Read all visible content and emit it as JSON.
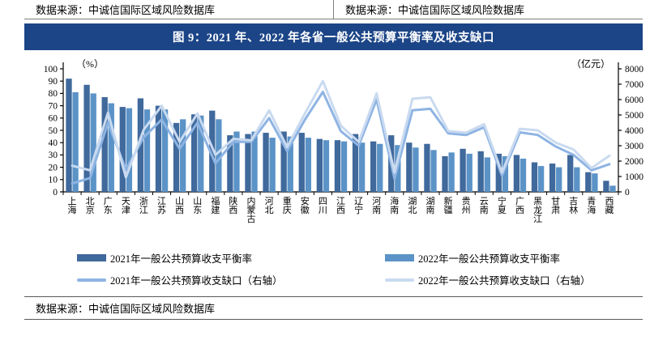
{
  "header": {
    "left_source": "数据来源：中诚信国际区域风险数据库",
    "right_source": "数据来源：中诚信国际区域风险数据库"
  },
  "figure": {
    "title": "图 9：2021 年、2022 年各省一般公共预算平衡率及收支缺口",
    "banner_color": "#1C4587"
  },
  "chart_data": {
    "type": "bar+line",
    "left_axis": {
      "label": "（%）",
      "min": 0,
      "max": 100,
      "step": 10
    },
    "right_axis": {
      "label": "（亿元）",
      "min": 0,
      "max": 8000,
      "step": 1000
    },
    "categories": [
      "上海",
      "北京",
      "广东",
      "天津",
      "浙江",
      "江苏",
      "山西",
      "山东",
      "福建",
      "陕西",
      "内蒙古",
      "河北",
      "重庆",
      "安徽",
      "四川",
      "江西",
      "辽宁",
      "河南",
      "海南",
      "湖北",
      "湖南",
      "新疆",
      "贵州",
      "云南",
      "宁夏",
      "广西",
      "黑龙江",
      "甘肃",
      "吉林",
      "青海",
      "西藏"
    ],
    "series": [
      {
        "name": "2021年一般公共预算收支平衡率",
        "type": "bar",
        "axis": "left",
        "color": "#40699C",
        "values": [
          92,
          87,
          77,
          69,
          76,
          70,
          56,
          63,
          66,
          46,
          47,
          48,
          49,
          48,
          43,
          42,
          47,
          41,
          46,
          40,
          39,
          29,
          35,
          33,
          31,
          30,
          24,
          23,
          30,
          16,
          9
        ]
      },
      {
        "name": "2022年一般公共预算收支平衡率",
        "type": "bar",
        "axis": "left",
        "color": "#5B93C7",
        "values": [
          81,
          80,
          72,
          68,
          67,
          67,
          59,
          62,
          59,
          49,
          49,
          44,
          45,
          44,
          42,
          41,
          40,
          39,
          38,
          36,
          34,
          32,
          31,
          28,
          29,
          27,
          21,
          20,
          20,
          15,
          5
        ]
      },
      {
        "name": "2021年一般公共预算收支缺口（右轴）",
        "type": "line",
        "axis": "right",
        "color": "#8EB4E3",
        "values": [
          550,
          900,
          4500,
          1450,
          3550,
          4700,
          2800,
          4500,
          1850,
          3250,
          3250,
          4800,
          2650,
          4700,
          6500,
          3950,
          3000,
          6000,
          850,
          5300,
          5400,
          3800,
          3700,
          4200,
          1050,
          3870,
          3700,
          2950,
          2400,
          1400,
          1800
        ]
      },
      {
        "name": "2022年一般公共预算收支缺口（右轴）",
        "type": "line",
        "axis": "right",
        "color": "#C9DAF0",
        "values": [
          1700,
          1400,
          5150,
          950,
          4050,
          5600,
          3250,
          5100,
          2400,
          3450,
          3350,
          5300,
          2900,
          5100,
          7200,
          4300,
          3250,
          6400,
          1250,
          6050,
          6150,
          3950,
          3850,
          4400,
          1250,
          4100,
          4000,
          3200,
          2750,
          1550,
          2350
        ]
      }
    ],
    "legend_position": "bottom",
    "grid": false
  },
  "footer": {
    "source": "数据来源：中诚信国际区域风险数据库"
  }
}
